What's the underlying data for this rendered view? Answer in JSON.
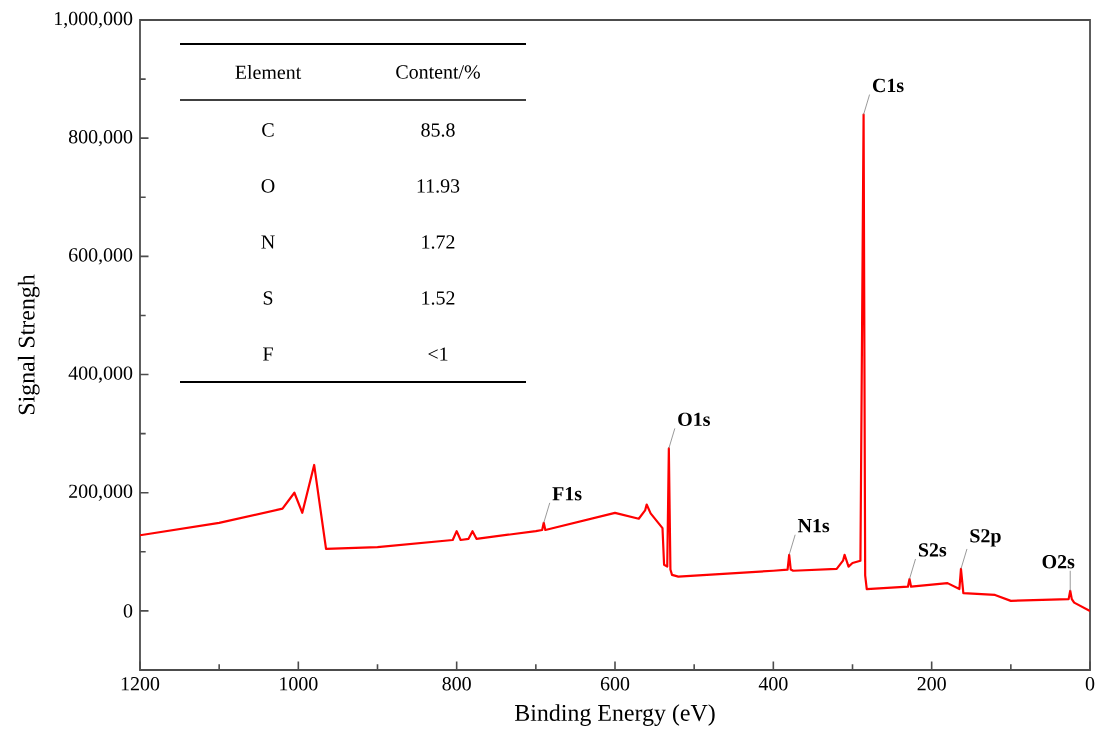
{
  "chart_data": {
    "type": "line",
    "xlabel": "Binding Energy (eV)",
    "ylabel": "Signal Strengh",
    "x": [
      1200,
      1100,
      1020,
      1005,
      995,
      980,
      965,
      900,
      805,
      800,
      795,
      785,
      780,
      775,
      700,
      692,
      690,
      688,
      600,
      570,
      562,
      560,
      555,
      540,
      538,
      534,
      532,
      530,
      528,
      520,
      400,
      382,
      380,
      378,
      375,
      320,
      312,
      310,
      305,
      300,
      290,
      286,
      284,
      282,
      230,
      228,
      226,
      180,
      165,
      163,
      160,
      120,
      100,
      27,
      25,
      23,
      20,
      0
    ],
    "series": [
      {
        "color": "#ff0000",
        "values": [
          128000,
          149000,
          173000,
          200000,
          166000,
          247000,
          105000,
          108000,
          120000,
          135000,
          120000,
          122000,
          135000,
          122000,
          135000,
          137000,
          149000,
          137000,
          166000,
          156000,
          170000,
          180000,
          165000,
          140000,
          78000,
          75000,
          275000,
          70000,
          61000,
          58000,
          68000,
          70000,
          95000,
          70000,
          68000,
          71000,
          85000,
          95000,
          75000,
          81000,
          85000,
          840000,
          60000,
          37000,
          41000,
          54000,
          41000,
          47000,
          37000,
          71000,
          30000,
          27000,
          17000,
          20000,
          34000,
          20000,
          14000,
          0
        ]
      }
    ],
    "xlim": [
      1200,
      0
    ],
    "xticks": [
      1200,
      1000,
      800,
      600,
      400,
      200,
      0
    ],
    "ylim": [
      -100000,
      1000000
    ],
    "yticks": [
      {
        "value": 0,
        "label": "0"
      },
      {
        "value": 200000,
        "label": "200,000"
      },
      {
        "value": 400000,
        "label": "400,000"
      },
      {
        "value": 600000,
        "label": "600,000"
      },
      {
        "value": 800000,
        "label": "800,000"
      },
      {
        "value": 1000000,
        "label": "1,000,000"
      }
    ],
    "grid": false,
    "annotations": [
      {
        "text": "C1s",
        "x": 286,
        "y": 840000
      },
      {
        "text": "O1s",
        "x": 532,
        "y": 275000
      },
      {
        "text": "F1s",
        "x": 690,
        "y": 149000
      },
      {
        "text": "N1s",
        "x": 380,
        "y": 95000
      },
      {
        "text": "S2s",
        "x": 228,
        "y": 54000
      },
      {
        "text": "S2p",
        "x": 163,
        "y": 71000
      },
      {
        "text": "O2s",
        "x": 25,
        "y": 34000
      },
      "Element",
      "Content/%",
      "C",
      "85.8",
      "O",
      "11.93",
      "N",
      "1.72",
      "S",
      "1.52",
      "F",
      "<1"
    ]
  }
}
